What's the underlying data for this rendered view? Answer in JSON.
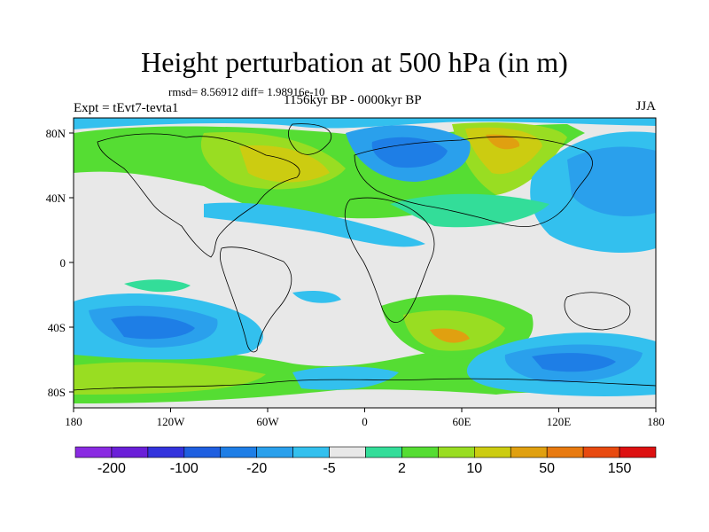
{
  "title": "Height perturbation at 500 hPa (in m)",
  "stats": "rmsd= 8.56912 diff= 1.98916e-10",
  "period": "1156kyr BP - 0000kyr BP",
  "experiment": "Expt = tEvt7-tevta1",
  "season": "JJA",
  "lat_ticks": [
    "80N",
    "40N",
    "0",
    "40S",
    "80S"
  ],
  "lon_ticks": [
    "180",
    "120W",
    "60W",
    "0",
    "60E",
    "120E",
    "180"
  ],
  "colorbar": {
    "colors": [
      "#8a2be2",
      "#6a1fd8",
      "#3333dd",
      "#1f5fe0",
      "#1e7ee6",
      "#2aa0ec",
      "#33c0ee",
      "#e8e8e8",
      "#33dd99",
      "#55dd33",
      "#99dd22",
      "#cccc11",
      "#e0a010",
      "#e87a10",
      "#e84a10",
      "#dd1111"
    ],
    "labels": [
      "-200",
      "-100",
      "-20",
      "-5",
      "2",
      "10",
      "50",
      "150"
    ]
  },
  "palette": {
    "neutral": "#e8e8e8",
    "coast": "#000000"
  }
}
